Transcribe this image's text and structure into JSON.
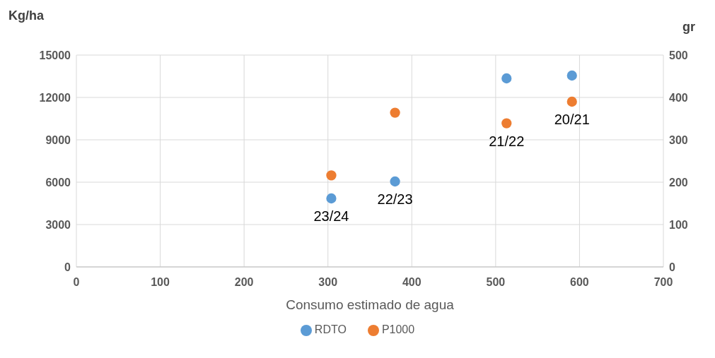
{
  "chart_data": {
    "type": "scatter",
    "xlabel": "Consumo estimado de agua",
    "ylabel": "Kg/ha",
    "y2label": "gr",
    "xlim": [
      0,
      700
    ],
    "xticks": [
      0,
      100,
      200,
      300,
      400,
      500,
      600,
      700
    ],
    "ylim": [
      0,
      15000
    ],
    "yticks": [
      0,
      3000,
      6000,
      9000,
      12000,
      15000
    ],
    "y2lim": [
      0,
      500
    ],
    "y2ticks": [
      0,
      100,
      200,
      300,
      400,
      500
    ],
    "grid": true,
    "legend": "bottom",
    "marker": "circle",
    "series": [
      {
        "name": "RDTO",
        "color": "#5b9bd5",
        "x": [
          304,
          380,
          513,
          591
        ],
        "values": [
          4850,
          6050,
          13350,
          13550
        ]
      },
      {
        "name": "P1000",
        "color": "#ed7d31",
        "axis": "y2",
        "x": [
          304,
          380,
          513,
          591
        ],
        "values": [
          216,
          364,
          339,
          390
        ]
      }
    ],
    "annotations": [
      {
        "text": "23/24",
        "x": 304,
        "y": 4850
      },
      {
        "text": "22/23",
        "x": 380,
        "y": 6050
      },
      {
        "text": "21/22",
        "x": 513,
        "y": 10170
      },
      {
        "text": "20/21",
        "x": 591,
        "y": 11700
      }
    ]
  }
}
